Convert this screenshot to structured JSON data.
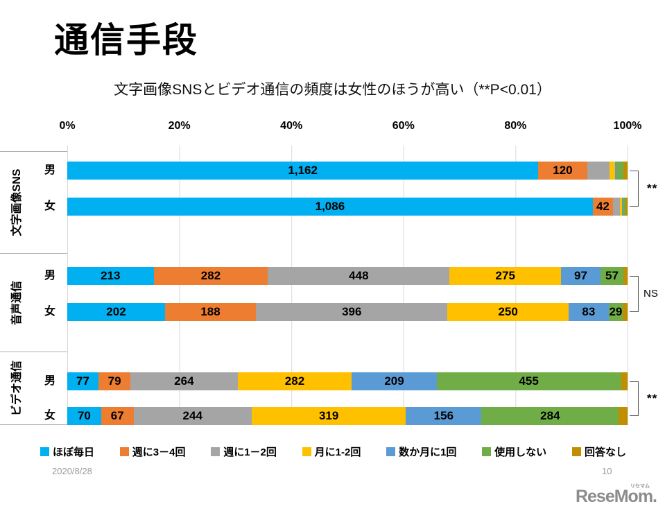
{
  "slide": {
    "title": "通信手段",
    "subtitle": "文字画像SNSとビデオ通信の頻度は女性のほうが高い（**P<0.01）",
    "footer": {
      "date": "2020/8/28",
      "page": "10"
    },
    "logo": {
      "text": "ReseMom.",
      "ruby": "リセマム"
    }
  },
  "chart_data": {
    "type": "bar",
    "orientation": "horizontal",
    "stacked": "percent",
    "xlabel": "",
    "ylabel": "",
    "x_ticks": [
      "0%",
      "20%",
      "40%",
      "60%",
      "80%",
      "100%"
    ],
    "xlim": [
      0,
      100
    ],
    "grid": "vertical, light gray at every 20%",
    "legend_position": "bottom",
    "legend": [
      {
        "label": "ほぼ毎日",
        "color": "#00B0F0"
      },
      {
        "label": "週に3－4回",
        "color": "#ED7D31"
      },
      {
        "label": "週に1－2回",
        "color": "#A5A5A5"
      },
      {
        "label": "月に1-2回",
        "color": "#FFC000"
      },
      {
        "label": "数か月に1回",
        "color": "#5B9BD5"
      },
      {
        "label": "使用しない",
        "color": "#70AD47"
      },
      {
        "label": "回答なし",
        "color": "#BF8F00"
      }
    ],
    "note": "segments with empty text have no visible data label; their values are estimated from pixel widths so each male row sums to ~1382 and each female row to ~1158",
    "groups": [
      {
        "category": "文字画像SNS",
        "significance": "**",
        "rows": [
          {
            "label": "男",
            "segments": [
              {
                "value": 1162,
                "text": "1,162"
              },
              {
                "value": 120,
                "text": "120"
              },
              {
                "value": 56,
                "text": ""
              },
              {
                "value": 14,
                "text": ""
              },
              {
                "value": 3,
                "text": ""
              },
              {
                "value": 17,
                "text": ""
              },
              {
                "value": 10,
                "text": ""
              }
            ]
          },
          {
            "label": "女",
            "segments": [
              {
                "value": 1086,
                "text": "1,086"
              },
              {
                "value": 42,
                "text": "42"
              },
              {
                "value": 14,
                "text": ""
              },
              {
                "value": 4,
                "text": ""
              },
              {
                "value": 2,
                "text": ""
              },
              {
                "value": 5,
                "text": ""
              },
              {
                "value": 5,
                "text": ""
              }
            ]
          }
        ]
      },
      {
        "category": "音声通信",
        "significance": "NS",
        "rows": [
          {
            "label": "男",
            "segments": [
              {
                "value": 213,
                "text": "213"
              },
              {
                "value": 282,
                "text": "282"
              },
              {
                "value": 448,
                "text": "448"
              },
              {
                "value": 275,
                "text": "275"
              },
              {
                "value": 97,
                "text": "97"
              },
              {
                "value": 57,
                "text": "57"
              },
              {
                "value": 10,
                "text": ""
              }
            ]
          },
          {
            "label": "女",
            "segments": [
              {
                "value": 202,
                "text": "202"
              },
              {
                "value": 188,
                "text": "188"
              },
              {
                "value": 396,
                "text": "396"
              },
              {
                "value": 250,
                "text": "250"
              },
              {
                "value": 83,
                "text": "83"
              },
              {
                "value": 29,
                "text": "29"
              },
              {
                "value": 10,
                "text": ""
              }
            ]
          }
        ]
      },
      {
        "category": "ビデオ通信",
        "significance": "**",
        "rows": [
          {
            "label": "男",
            "segments": [
              {
                "value": 77,
                "text": "77"
              },
              {
                "value": 79,
                "text": "79"
              },
              {
                "value": 264,
                "text": "264"
              },
              {
                "value": 282,
                "text": "282"
              },
              {
                "value": 209,
                "text": "209"
              },
              {
                "value": 455,
                "text": "455"
              },
              {
                "value": 16,
                "text": ""
              }
            ]
          },
          {
            "label": "女",
            "segments": [
              {
                "value": 70,
                "text": "70"
              },
              {
                "value": 67,
                "text": "67"
              },
              {
                "value": 244,
                "text": "244"
              },
              {
                "value": 319,
                "text": "319"
              },
              {
                "value": 156,
                "text": "156"
              },
              {
                "value": 284,
                "text": "284"
              },
              {
                "value": 18,
                "text": ""
              }
            ]
          }
        ]
      }
    ]
  }
}
